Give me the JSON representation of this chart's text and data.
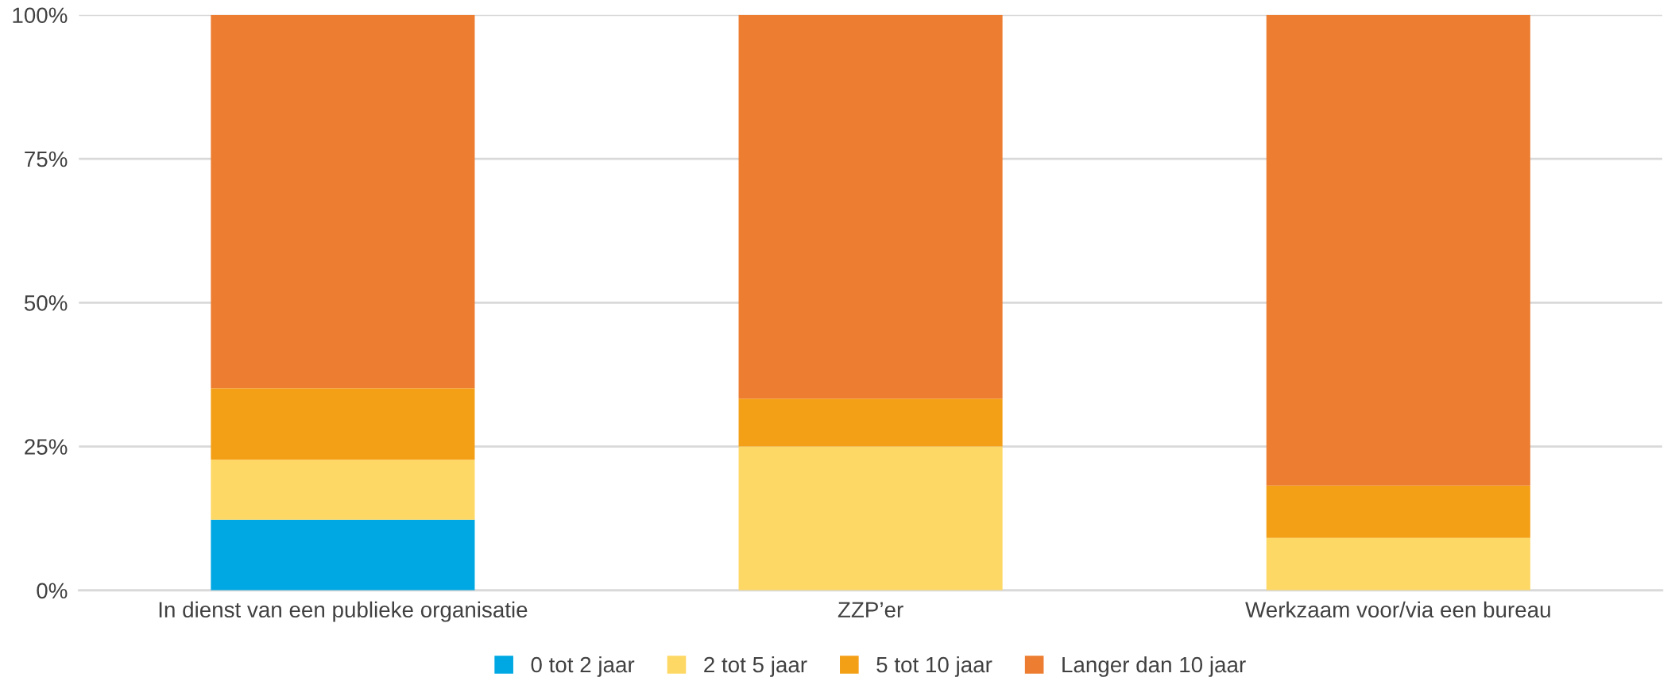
{
  "chart_data": {
    "type": "bar",
    "stacked": true,
    "categories": [
      "In dienst van een publieke organisatie",
      "ZZP’er",
      "Werkzaam voor/via een bureau"
    ],
    "series": [
      {
        "name": "0 tot 2 jaar",
        "color": "#00a8e3",
        "values": [
          12.3,
          0,
          0
        ]
      },
      {
        "name": "2 tot 5 jaar",
        "color": "#fed864",
        "values": [
          10.4,
          25,
          9.1
        ]
      },
      {
        "name": "5 tot 10 jaar",
        "color": "#f4a017",
        "values": [
          12.4,
          8.3,
          9.1
        ]
      },
      {
        "name": "Langer dan 10 jaar",
        "color": "#ed7d31",
        "values": [
          64.9,
          66.7,
          81.8
        ]
      }
    ],
    "ylim": [
      0,
      100
    ],
    "yticks": [
      {
        "value": 0,
        "label": "0%"
      },
      {
        "value": 25,
        "label": "25%"
      },
      {
        "value": 50,
        "label": "50%"
      },
      {
        "value": 75,
        "label": "75%"
      },
      {
        "value": 100,
        "label": "100%"
      }
    ],
    "grid": "y",
    "legend": "bottom"
  }
}
